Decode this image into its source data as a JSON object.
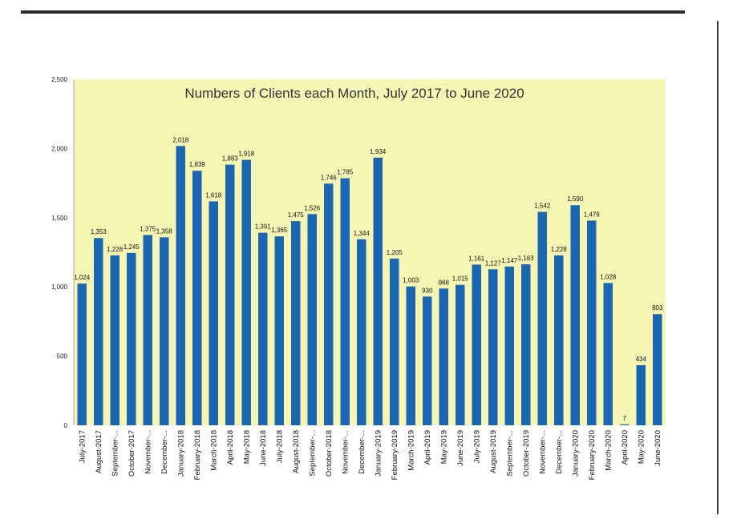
{
  "chart_data": {
    "type": "bar",
    "title": "Numbers of Clients each Month, July 2017 to June 2020",
    "xlabel": "",
    "ylabel": "",
    "ylim": [
      0,
      2500
    ],
    "yticks": [
      "0",
      "500",
      "1,000",
      "1,500",
      "2,000",
      "2,500"
    ],
    "grid": false,
    "legend": "none",
    "colors": {
      "bar": "#1a66b0",
      "plot_background": "#f6f6b4"
    },
    "categories": [
      "July-2017",
      "August-2017",
      "September-...",
      "October-2017",
      "November-...",
      "December-...",
      "January-2018",
      "February-2018",
      "March-2018",
      "April-2018",
      "May-2018",
      "June-2018",
      "July-2018",
      "August-2018",
      "September-...",
      "October-2018",
      "November-...",
      "December-...",
      "January-2019",
      "February-2019",
      "March-2019",
      "April-2019",
      "May-2019",
      "June-2019",
      "July-2019",
      "August-2019",
      "September-...",
      "October-2019",
      "November-...",
      "December-...",
      "January-2020",
      "February-2020",
      "March-2020",
      "April-2020",
      "May-2020",
      "June-2020"
    ],
    "values": [
      1024,
      1353,
      1228,
      1245,
      1375,
      1358,
      2018,
      1839,
      1618,
      1883,
      1918,
      1391,
      1365,
      1475,
      1526,
      1746,
      1785,
      1344,
      1934,
      1205,
      1003,
      930,
      988,
      1015,
      1161,
      1127,
      1147,
      1163,
      1542,
      1228,
      1590,
      1479,
      1028,
      7,
      434,
      803
    ],
    "data_labels": [
      "1,024",
      "1,353",
      "1,228",
      "1,245",
      "1,375",
      "1,358",
      "2,018",
      "1,839",
      "1,618",
      "1,883",
      "1,918",
      "1,391",
      "1,365",
      "1,475",
      "1,526",
      "1,746",
      "1,785",
      "1,344",
      "1,934",
      "1,205",
      "1,003",
      "930",
      "988",
      "1,015",
      "1,161",
      "1,127",
      "1,147",
      "1,163",
      "1,542",
      "1,228",
      "1,590",
      "1,479",
      "1,028",
      "7",
      "434",
      "803"
    ]
  }
}
